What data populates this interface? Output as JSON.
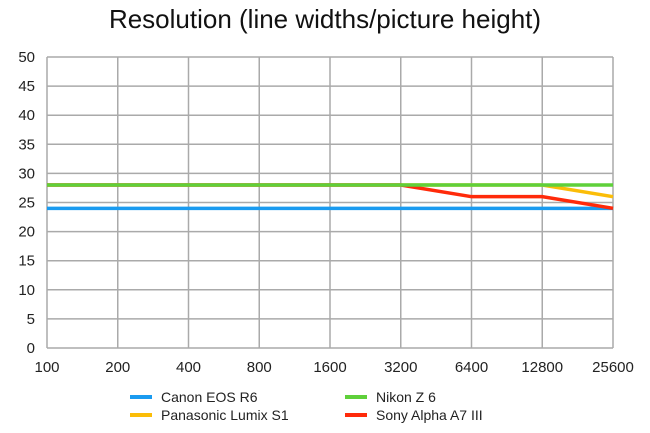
{
  "chart_data": {
    "type": "line",
    "title": "Resolution (line widths/picture height)",
    "categories": [
      "100",
      "200",
      "400",
      "800",
      "1600",
      "3200",
      "6400",
      "12800",
      "25600"
    ],
    "ylim": [
      0,
      50
    ],
    "yticks": [
      0,
      5,
      10,
      15,
      20,
      25,
      30,
      35,
      40,
      45,
      50
    ],
    "grid": true,
    "legend_position": "bottom",
    "series": [
      {
        "name": "Canon EOS R6",
        "color": "#1a9bf0",
        "values": [
          24,
          24,
          24,
          24,
          24,
          24,
          24,
          24,
          24
        ]
      },
      {
        "name": "Nikon Z 6",
        "color": "#5fd03a",
        "values": [
          28,
          28,
          28,
          28,
          28,
          28,
          28,
          28,
          28
        ]
      },
      {
        "name": "Panasonic Lumix S1",
        "color": "#fbbd08",
        "values": [
          28,
          28,
          28,
          28,
          28,
          28,
          28,
          28,
          26
        ]
      },
      {
        "name": "Sony Alpha A7 III",
        "color": "#ff2a0a",
        "values": [
          28,
          28,
          28,
          28,
          28,
          28,
          26,
          26,
          24
        ]
      }
    ]
  }
}
